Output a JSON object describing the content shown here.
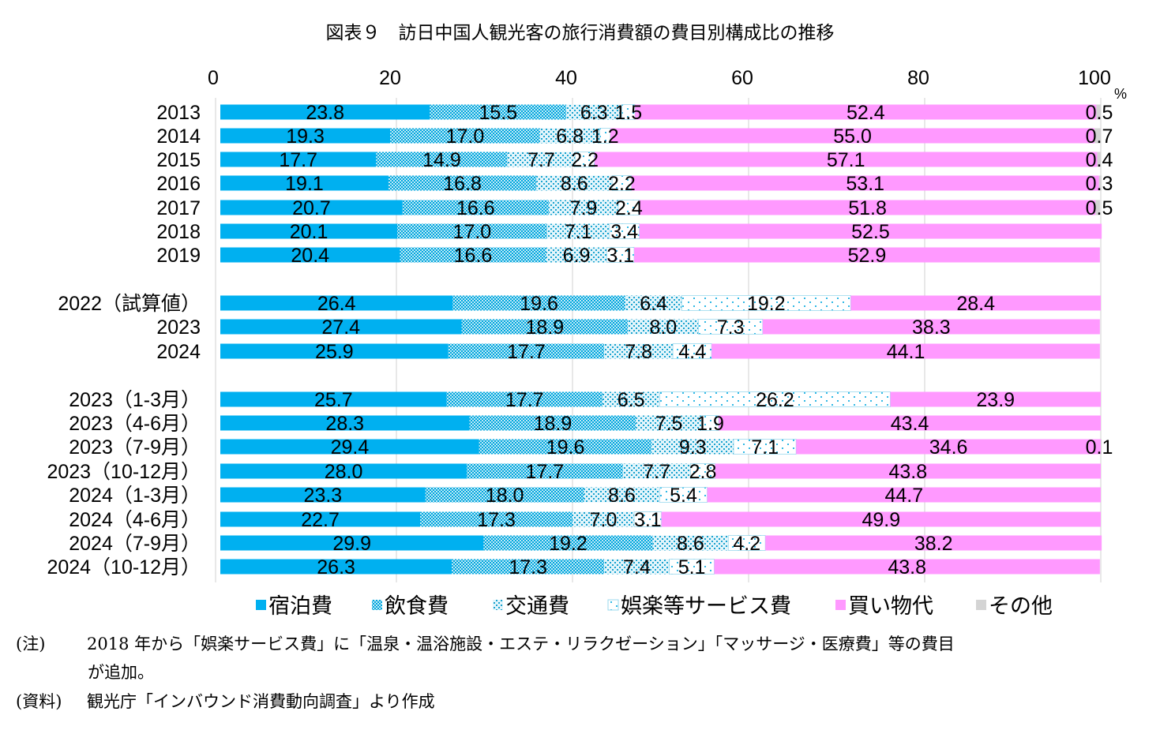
{
  "title": "図表９　訪日中国人観光客の旅行消費額の費目別構成比の推移",
  "chart_data": {
    "type": "bar",
    "orientation": "horizontal",
    "stacked": true,
    "percent_unit": "%",
    "xlim": [
      0,
      100
    ],
    "x_ticks": [
      "0",
      "20",
      "40",
      "60",
      "80",
      "100"
    ],
    "legend_position": "bottom",
    "categories": [
      "2013",
      "2014",
      "2015",
      "2016",
      "2017",
      "2018",
      "2019",
      "2022（試算値）",
      "2023",
      "2024",
      "2023（1-3月）",
      "2023（4-6月）",
      "2023（7-9月）",
      "2023（10-12月）",
      "2024（1-3月）",
      "2024（4-6月）",
      "2024（7-9月）",
      "2024（10-12月）"
    ],
    "groups": [
      [
        0,
        1,
        2,
        3,
        4,
        5,
        6
      ],
      [
        7,
        8,
        9
      ],
      [
        10,
        11,
        12,
        13,
        14,
        15,
        16,
        17
      ]
    ],
    "series": [
      {
        "name": "宿泊費",
        "color": "#00b0f0",
        "pattern": "solid",
        "values": [
          23.8,
          19.3,
          17.7,
          19.1,
          20.7,
          20.1,
          20.4,
          26.4,
          27.4,
          25.9,
          25.7,
          28.3,
          29.4,
          28.0,
          23.3,
          22.7,
          29.9,
          26.3
        ],
        "labels": [
          "23.8",
          "19.3",
          "17.7",
          "19.1",
          "20.7",
          "20.1",
          "20.4",
          "26.4",
          "27.4",
          "25.9",
          "25.7",
          "28.3",
          "29.4",
          "28.0",
          "23.3",
          "22.7",
          "29.9",
          "26.3"
        ]
      },
      {
        "name": "飲食費",
        "color": "#7fd2ec",
        "pattern": "dots-dense",
        "values": [
          15.5,
          17.0,
          14.9,
          16.8,
          16.6,
          17.0,
          16.6,
          19.6,
          18.9,
          17.7,
          17.7,
          18.9,
          19.6,
          17.7,
          18.0,
          17.3,
          19.2,
          17.3
        ],
        "labels": [
          "15.5",
          "17.0",
          "14.9",
          "16.8",
          "16.6",
          "17.0",
          "16.6",
          "19.6",
          "18.9",
          "17.7",
          "17.7",
          "18.9",
          "19.6",
          "17.7",
          "18.0",
          "17.3",
          "19.2",
          "17.3"
        ]
      },
      {
        "name": "交通費",
        "color": "#b8e6f5",
        "pattern": "dots-medium",
        "values": [
          6.3,
          6.8,
          7.7,
          8.6,
          7.9,
          7.1,
          6.9,
          6.4,
          8.0,
          7.8,
          6.5,
          7.5,
          9.3,
          7.7,
          8.6,
          7.0,
          8.6,
          7.4
        ],
        "labels": [
          "6.3",
          "6.8",
          "7.7",
          "8.6",
          "7.9",
          "7.1",
          "6.9",
          "6.4",
          "8.0",
          "7.8",
          "6.5",
          "7.5",
          "9.3",
          "7.7",
          "8.6",
          "7.0",
          "8.6",
          "7.4"
        ]
      },
      {
        "name": "娯楽等サービス費",
        "color": "#ffffff",
        "pattern": "dots-sparse",
        "values": [
          1.5,
          1.2,
          2.2,
          2.2,
          2.4,
          3.4,
          3.1,
          19.2,
          7.3,
          4.4,
          26.2,
          1.9,
          7.1,
          2.8,
          5.4,
          3.1,
          4.2,
          5.1
        ],
        "labels": [
          "1.5",
          "1.2",
          "2.2",
          "2.2",
          "2.4",
          "3.4",
          "3.1",
          "19.2",
          "7.3",
          "4.4",
          "26.2",
          "1.9",
          "7.1",
          "2.8",
          "5.4",
          "3.1",
          "4.2",
          "5.1"
        ]
      },
      {
        "name": "買い物代",
        "color": "#ff99ff",
        "pattern": "solid",
        "values": [
          52.4,
          55.0,
          57.1,
          53.1,
          51.8,
          52.5,
          52.9,
          28.4,
          38.3,
          44.1,
          23.9,
          43.4,
          34.6,
          43.8,
          44.7,
          49.9,
          38.2,
          43.8
        ],
        "labels": [
          "52.4",
          "55.0",
          "57.1",
          "53.1",
          "51.8",
          "52.5",
          "52.9",
          "28.4",
          "38.3",
          "44.1",
          "23.9",
          "43.4",
          "34.6",
          "43.8",
          "44.7",
          "49.9",
          "38.2",
          "43.8"
        ]
      },
      {
        "name": "その他",
        "color": "#d4d4d4",
        "pattern": "solid",
        "values": [
          0.5,
          0.7,
          0.4,
          0.3,
          0.5,
          0,
          0,
          0,
          0,
          0,
          0,
          0,
          0.1,
          0,
          0,
          0,
          0,
          0
        ],
        "labels": [
          "0.5",
          "0.7",
          "0.4",
          "0.3",
          "0.5",
          "",
          "",
          "",
          "",
          "",
          "",
          "",
          "0.1",
          "",
          "",
          "",
          "",
          ""
        ]
      }
    ]
  },
  "notes": {
    "note_label": "(注)",
    "note_text": "2018 年から「娯楽サービス費」に「温泉・温浴施設・エステ・リラクゼーション」「マッサージ・医療費」等の費目",
    "note_cont": "が追加。",
    "source_label": "(資料)",
    "source_text": "観光庁「インバウンド消費動向調査」より作成"
  }
}
